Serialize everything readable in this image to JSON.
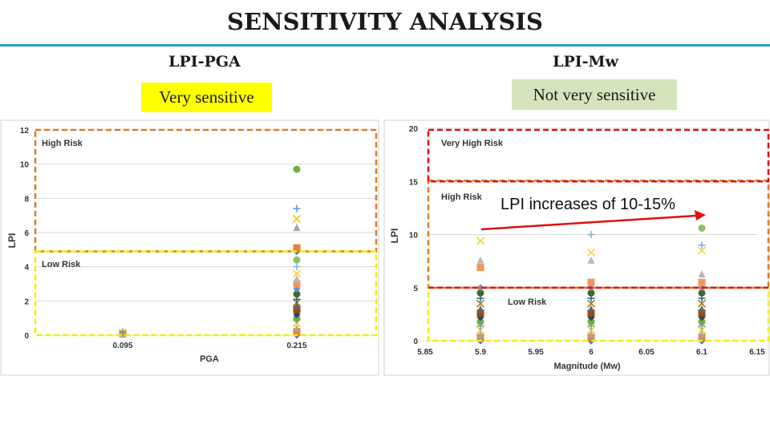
{
  "title": "SENSITIVITY ANALYSIS",
  "panels": [
    {
      "heading": "LPI-PGA",
      "badge": "Very sensitive",
      "badge_color": "#ffff00"
    },
    {
      "heading": "LPI-Mw",
      "badge": "Not very sensitive",
      "badge_color": "#d6e4bc"
    }
  ],
  "colors": {
    "title_rule": "#2e9bd6",
    "high_risk_box": "#e07b22",
    "very_high_risk_box": "#e01010",
    "low_risk_box": "#f0f000",
    "arrow": "#e01010"
  },
  "chart_data": [
    {
      "type": "scatter",
      "xlabel": "PGA",
      "ylabel": "LPI",
      "categories": [
        "0.095",
        "0.215"
      ],
      "ylim": [
        0,
        12
      ],
      "yticks": [
        0,
        2,
        4,
        6,
        8,
        10,
        12
      ],
      "grid": true,
      "zones": [
        {
          "label": "High Risk",
          "from": 4.9,
          "to": 12
        },
        {
          "label": "Low Risk",
          "from": 0,
          "to": 4.9
        }
      ],
      "points": [
        {
          "x": "0.095",
          "values": [
            0.05,
            0.08,
            0.1,
            0.15,
            0.2
          ]
        },
        {
          "x": "0.215",
          "values": [
            0,
            0.2,
            0.4,
            0.7,
            0.9,
            1.0,
            1.2,
            1.5,
            1.7,
            1.9,
            2.1,
            2.4,
            2.7,
            3.0,
            3.3,
            3.6,
            4.0,
            4.4,
            4.9,
            5.1,
            6.3,
            6.8,
            7.4,
            9.7
          ]
        }
      ]
    },
    {
      "type": "scatter",
      "xlabel": "Magnitude (Mw)",
      "ylabel": "LPI",
      "x_ticks": [
        "5.85",
        "5.9",
        "5.95",
        "6",
        "6.05",
        "6.1",
        "6.15"
      ],
      "xlim": [
        5.85,
        6.15
      ],
      "ylim": [
        0,
        20
      ],
      "yticks": [
        0,
        5,
        10,
        15,
        20
      ],
      "grid": true,
      "zones": [
        {
          "label": "Very High Risk",
          "from": 15,
          "to": 20
        },
        {
          "label": "High Risk",
          "from": 5,
          "to": 15
        },
        {
          "label": "Low Risk",
          "from": 0,
          "to": 5
        }
      ],
      "annotation": "LPI increases of 10-15%",
      "points": [
        {
          "x": 5.9,
          "values": [
            0,
            0.3,
            0.6,
            1.0,
            1.4,
            1.8,
            2.2,
            2.6,
            3.0,
            3.5,
            4.0,
            4.5,
            5.0,
            6.9,
            7.6,
            9.4
          ]
        },
        {
          "x": 6.0,
          "values": [
            0,
            0.3,
            0.6,
            1.0,
            1.4,
            1.8,
            2.2,
            2.6,
            3.0,
            3.5,
            4.0,
            4.5,
            5.0,
            5.5,
            7.6,
            8.3,
            10.0
          ]
        },
        {
          "x": 6.1,
          "values": [
            0,
            0.3,
            0.6,
            1.0,
            1.4,
            1.8,
            2.2,
            2.6,
            3.0,
            3.5,
            4.0,
            4.5,
            5.0,
            5.5,
            6.3,
            8.5,
            9.0,
            10.6
          ]
        }
      ]
    }
  ]
}
